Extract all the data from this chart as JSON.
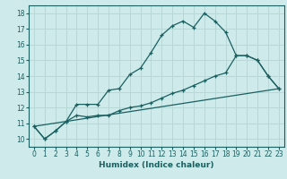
{
  "xlabel": "Humidex (Indice chaleur)",
  "background_color": "#ceeaea",
  "grid_color": "#b8d8d8",
  "line_color": "#1a6060",
  "xlim": [
    -0.5,
    23.5
  ],
  "ylim": [
    9.5,
    18.5
  ],
  "xticks": [
    0,
    1,
    2,
    3,
    4,
    5,
    6,
    7,
    8,
    9,
    10,
    11,
    12,
    13,
    14,
    15,
    16,
    17,
    18,
    19,
    20,
    21,
    22,
    23
  ],
  "yticks": [
    10,
    11,
    12,
    13,
    14,
    15,
    16,
    17,
    18
  ],
  "line1_x": [
    0,
    1,
    2,
    3,
    4,
    5,
    6,
    7,
    8,
    9,
    10,
    11,
    12,
    13,
    14,
    15,
    16,
    17,
    18,
    19,
    20,
    21,
    22,
    23
  ],
  "line1_y": [
    10.8,
    10.0,
    10.5,
    11.1,
    12.2,
    12.2,
    12.2,
    13.1,
    13.2,
    14.1,
    14.5,
    15.5,
    16.6,
    17.2,
    17.5,
    17.1,
    18.0,
    17.5,
    16.8,
    15.3,
    15.3,
    15.0,
    14.0,
    13.2
  ],
  "line2_x": [
    0,
    1,
    2,
    3,
    4,
    5,
    6,
    7,
    8,
    9,
    10,
    11,
    12,
    13,
    14,
    15,
    16,
    17,
    18,
    19,
    20,
    21,
    22,
    23
  ],
  "line2_y": [
    10.8,
    10.0,
    10.5,
    11.1,
    11.5,
    11.4,
    11.5,
    11.5,
    11.8,
    12.0,
    12.1,
    12.3,
    12.6,
    12.9,
    13.1,
    13.4,
    13.7,
    14.0,
    14.2,
    15.3,
    15.3,
    15.0,
    14.0,
    13.2
  ],
  "line3_x": [
    0,
    23
  ],
  "line3_y": [
    10.8,
    13.2
  ],
  "tick_fontsize": 5.5,
  "xlabel_fontsize": 6.5
}
